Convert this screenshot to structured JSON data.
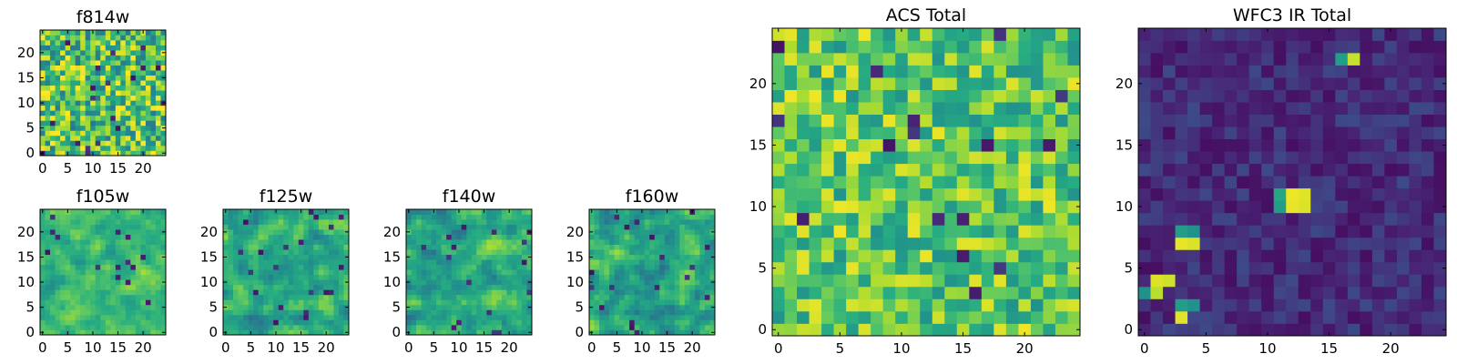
{
  "figure_title": "",
  "chart_data": [
    {
      "type": "heatmap",
      "title": "f814w",
      "grid_size": 25,
      "xlim": [
        0,
        24
      ],
      "ylim": [
        0,
        24
      ],
      "xticks": [
        0,
        5,
        10,
        15,
        20
      ],
      "yticks": [
        0,
        5,
        10,
        15,
        20
      ],
      "colormap": "viridis",
      "value_range": [
        0,
        1
      ],
      "pattern": "noise",
      "level": 0.72,
      "spread": 0.32,
      "seed": 814,
      "hotspots": []
    },
    {
      "type": "heatmap",
      "title": "f105w",
      "grid_size": 25,
      "xlim": [
        0,
        24
      ],
      "ylim": [
        0,
        24
      ],
      "xticks": [
        0,
        5,
        10,
        15,
        20
      ],
      "yticks": [
        0,
        5,
        10,
        15,
        20
      ],
      "colormap": "viridis",
      "value_range": [
        0,
        1
      ],
      "pattern": "smooth",
      "level": 0.68,
      "spread": 0.34,
      "seed": 105,
      "hotspots": []
    },
    {
      "type": "heatmap",
      "title": "f125w",
      "grid_size": 25,
      "xlim": [
        0,
        24
      ],
      "ylim": [
        0,
        24
      ],
      "xticks": [
        0,
        5,
        10,
        15,
        20
      ],
      "yticks": [
        0,
        5,
        10,
        15,
        20
      ],
      "colormap": "viridis",
      "value_range": [
        0,
        1
      ],
      "pattern": "smooth",
      "level": 0.62,
      "spread": 0.42,
      "seed": 125,
      "hotspots": []
    },
    {
      "type": "heatmap",
      "title": "f140w",
      "grid_size": 25,
      "xlim": [
        0,
        24
      ],
      "ylim": [
        0,
        24
      ],
      "xticks": [
        0,
        5,
        10,
        15,
        20
      ],
      "yticks": [
        0,
        5,
        10,
        15,
        20
      ],
      "colormap": "viridis",
      "value_range": [
        0,
        1
      ],
      "pattern": "smooth",
      "level": 0.62,
      "spread": 0.42,
      "seed": 140,
      "hotspots": []
    },
    {
      "type": "heatmap",
      "title": "f160w",
      "grid_size": 25,
      "xlim": [
        0,
        24
      ],
      "ylim": [
        0,
        24
      ],
      "xticks": [
        0,
        5,
        10,
        15,
        20
      ],
      "yticks": [
        0,
        5,
        10,
        15,
        20
      ],
      "colormap": "viridis",
      "value_range": [
        0,
        1
      ],
      "pattern": "smooth",
      "level": 0.6,
      "spread": 0.44,
      "seed": 160,
      "hotspots": []
    },
    {
      "type": "heatmap",
      "title": "ACS Total",
      "grid_size": 25,
      "xlim": [
        0,
        24
      ],
      "ylim": [
        0,
        24
      ],
      "xticks": [
        0,
        5,
        10,
        15,
        20
      ],
      "yticks": [
        0,
        5,
        10,
        15,
        20
      ],
      "colormap": "viridis",
      "value_range": [
        0,
        1
      ],
      "pattern": "noise",
      "level": 0.74,
      "spread": 0.24,
      "seed": 9001,
      "hotspots": []
    },
    {
      "type": "heatmap",
      "title": "WFC3 IR Total",
      "grid_size": 25,
      "xlim": [
        0,
        24
      ],
      "ylim": [
        0,
        24
      ],
      "xticks": [
        0,
        5,
        10,
        15,
        20
      ],
      "yticks": [
        0,
        5,
        10,
        15,
        20
      ],
      "colormap": "viridis",
      "value_range": [
        0,
        1
      ],
      "pattern": "noise",
      "level": 0.14,
      "spread": 0.09,
      "seed": 3003,
      "hotspots": [
        {
          "x": 12,
          "y": 11,
          "value": 0.98
        },
        {
          "x": 13,
          "y": 11,
          "value": 0.96
        },
        {
          "x": 12,
          "y": 10,
          "value": 0.97
        },
        {
          "x": 13,
          "y": 10,
          "value": 0.95
        },
        {
          "x": 11,
          "y": 11,
          "value": 0.6
        },
        {
          "x": 11,
          "y": 10,
          "value": 0.55
        },
        {
          "x": 3,
          "y": 7,
          "value": 0.97
        },
        {
          "x": 4,
          "y": 7,
          "value": 0.95
        },
        {
          "x": 3,
          "y": 8,
          "value": 0.55
        },
        {
          "x": 4,
          "y": 8,
          "value": 0.5
        },
        {
          "x": 1,
          "y": 4,
          "value": 0.95
        },
        {
          "x": 2,
          "y": 4,
          "value": 0.93
        },
        {
          "x": 1,
          "y": 3,
          "value": 0.9
        },
        {
          "x": 0,
          "y": 3,
          "value": 0.5
        },
        {
          "x": 3,
          "y": 1,
          "value": 0.96
        },
        {
          "x": 3,
          "y": 2,
          "value": 0.55
        },
        {
          "x": 4,
          "y": 2,
          "value": 0.5
        },
        {
          "x": 17,
          "y": 22,
          "value": 0.92
        },
        {
          "x": 16,
          "y": 22,
          "value": 0.55
        }
      ]
    }
  ]
}
